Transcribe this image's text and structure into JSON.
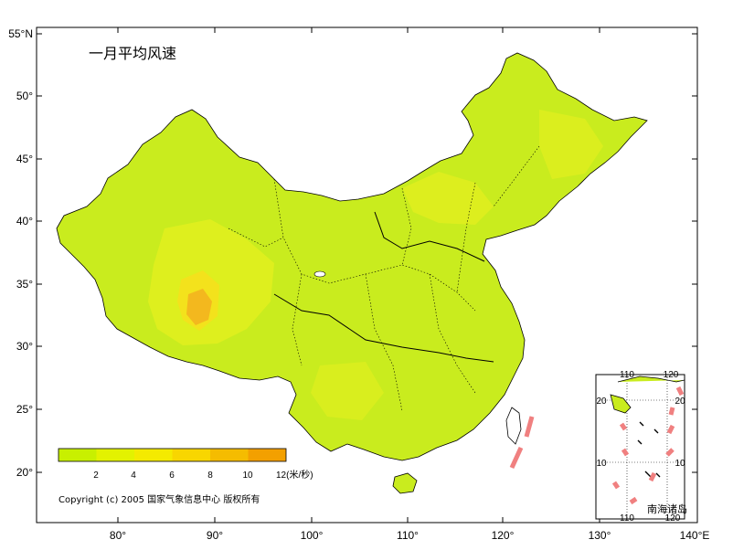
{
  "title": "一月平均风速",
  "axes": {
    "y_ticks": [
      "55°N",
      "50°",
      "45°",
      "40°",
      "35°",
      "30°",
      "25°",
      "20°"
    ],
    "x_ticks": [
      "80°",
      "90°",
      "100°",
      "110°",
      "120°",
      "130°",
      "140°E"
    ]
  },
  "legend": {
    "colors": [
      "#c8f000",
      "#e3f200",
      "#f4ea00",
      "#f8d600",
      "#f5bc00",
      "#f3a000"
    ],
    "ticks": [
      "2",
      "4",
      "6",
      "8",
      "10",
      "12(米/秒)"
    ]
  },
  "copyright": "Copyright (c) 2005 国家气象信息中心 版权所有",
  "inset": {
    "title": "南海诸岛",
    "top_ticks": [
      "110",
      "120"
    ],
    "bottom_ticks": [
      "110",
      "120"
    ],
    "left_ticks": [
      "20",
      "10"
    ],
    "right_ticks": [
      "20",
      "10"
    ]
  },
  "colors": {
    "land_base": "#c9ec1e",
    "land_mid": "#e0ef1e",
    "land_high": "#f3e21c",
    "land_peak": "#f3b81e",
    "boundary_dash": "#f08080"
  }
}
